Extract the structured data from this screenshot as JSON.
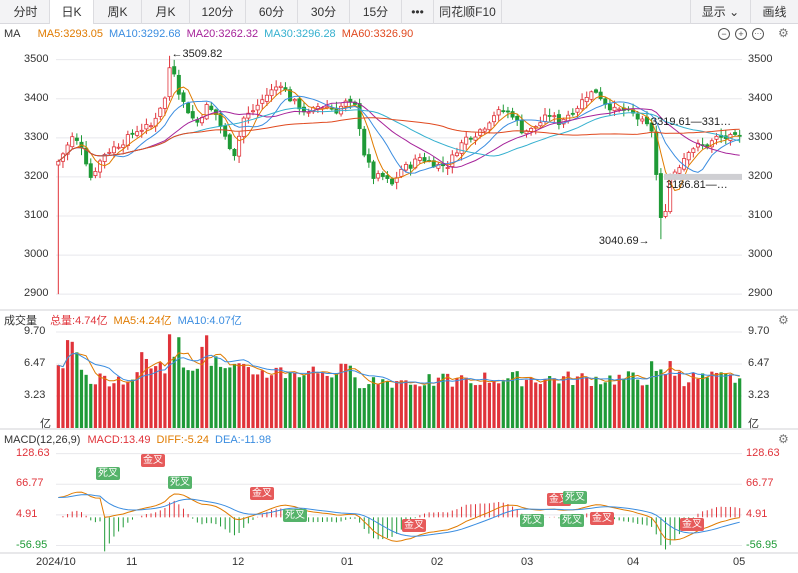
{
  "tabs": [
    {
      "label": "分时",
      "active": false
    },
    {
      "label": "日K",
      "active": true
    },
    {
      "label": "周K",
      "active": false
    },
    {
      "label": "月K",
      "active": false
    },
    {
      "label": "120分",
      "active": false
    },
    {
      "label": "60分",
      "active": false
    },
    {
      "label": "30分",
      "active": false
    },
    {
      "label": "15分",
      "active": false
    },
    {
      "label": "•••",
      "active": false
    },
    {
      "label": "同花顺F10",
      "active": false
    }
  ],
  "right_tabs": {
    "display": "显示",
    "draw": "画线"
  },
  "main_panel": {
    "name": "MA",
    "legend": [
      {
        "text": "MA5:3293.05",
        "color": "#e07b00"
      },
      {
        "text": "MA10:3292.68",
        "color": "#3b8de0"
      },
      {
        "text": "MA20:3262.32",
        "color": "#a6239a"
      },
      {
        "text": "MA30:3296.28",
        "color": "#35b0cf"
      },
      {
        "text": "MA60:3326.90",
        "color": "#e0491f"
      }
    ],
    "y_ticks": [
      "3500",
      "3400",
      "3300",
      "3200",
      "3100",
      "3000",
      "2900"
    ],
    "annotations": {
      "high": "←3509.82",
      "low": "3040.69→",
      "recent_high": "3319.61—331…",
      "recent_low": "3186.81—…"
    }
  },
  "volume_panel": {
    "name": "成交量",
    "legend": [
      {
        "text": "总量:4.74亿",
        "color": "#e0333a"
      },
      {
        "text": "MA5:4.24亿",
        "color": "#e07b00"
      },
      {
        "text": "MA10:4.07亿",
        "color": "#3b8de0"
      }
    ],
    "y_ticks": [
      "9.70",
      "6.47",
      "3.23",
      "亿"
    ]
  },
  "macd_panel": {
    "name": "MACD(12,26,9)",
    "legend": [
      {
        "text": "MACD:13.49",
        "color": "#e0333a"
      },
      {
        "text": "DIFF:-5.24",
        "color": "#e07b00"
      },
      {
        "text": "DEA:-11.98",
        "color": "#3b8de0"
      }
    ],
    "y_ticks": [
      "128.63",
      "66.77",
      "4.91",
      "-56.95"
    ],
    "signals": [
      {
        "label": "死叉",
        "type": "dead"
      },
      {
        "label": "金叉",
        "type": "golden"
      },
      {
        "label": "死叉",
        "type": "dead"
      },
      {
        "label": "金叉",
        "type": "golden"
      },
      {
        "label": "死叉",
        "type": "dead"
      },
      {
        "label": "金叉",
        "type": "golden"
      },
      {
        "label": "死叉",
        "type": "dead"
      },
      {
        "label": "金叉",
        "type": "golden"
      },
      {
        "label": "死叉",
        "type": "dead"
      },
      {
        "label": "金叉",
        "type": "golden"
      },
      {
        "label": "死叉",
        "type": "dead"
      },
      {
        "label": "金叉",
        "type": "golden"
      }
    ]
  },
  "x_axis_labels": [
    "2024/10",
    "11",
    "12",
    "01",
    "02",
    "03",
    "04",
    "05"
  ],
  "colors": {
    "up": "#e0333a",
    "down": "#1f9a37",
    "grid": "#e8e8ec"
  },
  "chart_data": {
    "type": "candlestick",
    "price_range": [
      2880,
      3540
    ],
    "price_anchors": [
      [
        0,
        3240
      ],
      [
        3,
        3300
      ],
      [
        5,
        3280
      ],
      [
        7,
        3200
      ],
      [
        10,
        3260
      ],
      [
        14,
        3290
      ],
      [
        17,
        3320
      ],
      [
        20,
        3330
      ],
      [
        22,
        3380
      ],
      [
        23,
        3400
      ],
      [
        24,
        3480
      ],
      [
        25,
        3470
      ],
      [
        26,
        3420
      ],
      [
        27,
        3390
      ],
      [
        29,
        3350
      ],
      [
        30,
        3340
      ],
      [
        32,
        3380
      ],
      [
        34,
        3360
      ],
      [
        36,
        3300
      ],
      [
        38,
        3260
      ],
      [
        40,
        3350
      ],
      [
        42,
        3370
      ],
      [
        45,
        3410
      ],
      [
        46,
        3420
      ],
      [
        48,
        3440
      ],
      [
        50,
        3400
      ],
      [
        52,
        3380
      ],
      [
        54,
        3360
      ],
      [
        56,
        3380
      ],
      [
        58,
        3380
      ],
      [
        60,
        3370
      ],
      [
        62,
        3390
      ],
      [
        64,
        3380
      ],
      [
        65,
        3330
      ],
      [
        66,
        3260
      ],
      [
        68,
        3200
      ],
      [
        70,
        3200
      ],
      [
        72,
        3180
      ],
      [
        74,
        3220
      ],
      [
        76,
        3230
      ],
      [
        78,
        3250
      ],
      [
        80,
        3240
      ],
      [
        82,
        3230
      ],
      [
        84,
        3230
      ],
      [
        86,
        3270
      ],
      [
        88,
        3300
      ],
      [
        90,
        3310
      ],
      [
        92,
        3330
      ],
      [
        94,
        3360
      ],
      [
        96,
        3370
      ],
      [
        98,
        3360
      ],
      [
        100,
        3320
      ],
      [
        102,
        3320
      ],
      [
        104,
        3340
      ],
      [
        106,
        3360
      ],
      [
        108,
        3340
      ],
      [
        110,
        3360
      ],
      [
        112,
        3380
      ],
      [
        114,
        3410
      ],
      [
        116,
        3420
      ],
      [
        118,
        3390
      ],
      [
        120,
        3370
      ],
      [
        122,
        3370
      ],
      [
        124,
        3360
      ],
      [
        126,
        3340
      ],
      [
        128,
        3320
      ],
      [
        130,
        3090
      ],
      [
        131,
        3120
      ],
      [
        132,
        3200
      ],
      [
        134,
        3230
      ],
      [
        136,
        3270
      ],
      [
        138,
        3280
      ],
      [
        140,
        3280
      ],
      [
        142,
        3300
      ],
      [
        144,
        3300
      ],
      [
        146,
        3300
      ],
      [
        147,
        3300
      ]
    ],
    "ma_series": [
      {
        "name": "MA5",
        "lag": 2
      },
      {
        "name": "MA10",
        "lag": 5
      },
      {
        "name": "MA20",
        "lag": 10
      },
      {
        "name": "MA30",
        "lag": 15
      },
      {
        "name": "MA60",
        "lag": 30
      }
    ],
    "volume_range": [
      0,
      9.7
    ],
    "macd_range": [
      -70,
      140
    ]
  }
}
